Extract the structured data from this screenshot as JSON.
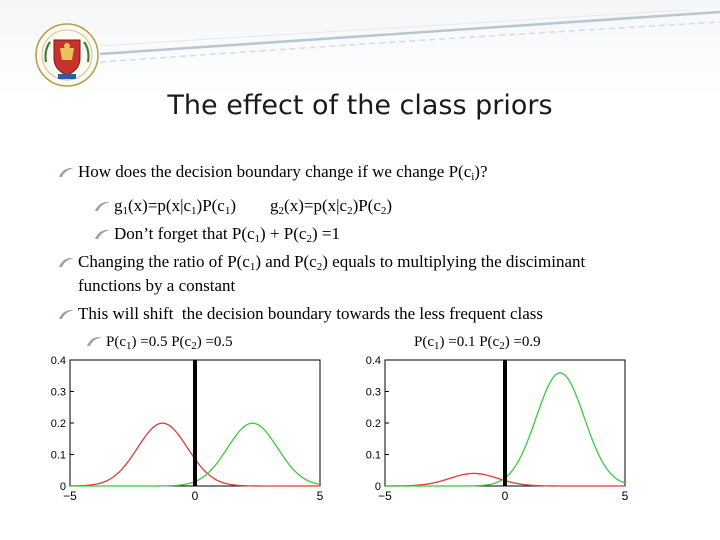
{
  "slide": {
    "title": "The effect of the class priors"
  },
  "bullets": [
    {
      "level": 1,
      "segments": [
        {
          "t": "How does the decision boundary change if we change P(c"
        },
        {
          "sub": "i"
        },
        {
          "t": ")?"
        }
      ]
    },
    {
      "level": 2,
      "segments": [
        {
          "t": "g"
        },
        {
          "sub": "1"
        },
        {
          "t": "(x)=p(x|c"
        },
        {
          "sub": "1"
        },
        {
          "t": ")P(c"
        },
        {
          "sub": "1"
        },
        {
          "t": ")        g"
        },
        {
          "sub": "2"
        },
        {
          "t": "(x)=p(x|c"
        },
        {
          "sub": "2"
        },
        {
          "t": ")P(c"
        },
        {
          "sub": "2"
        },
        {
          "t": ")"
        }
      ]
    },
    {
      "level": 2,
      "segments": [
        {
          "t": "Don’t forget that P(c"
        },
        {
          "sub": "1"
        },
        {
          "t": ") + P(c"
        },
        {
          "sub": "2"
        },
        {
          "t": ") =1"
        }
      ]
    },
    {
      "level": 1,
      "segments": [
        {
          "t": "Changing the ratio of P(c"
        },
        {
          "sub": "1"
        },
        {
          "t": ") and P(c"
        },
        {
          "sub": "2"
        },
        {
          "t": ") equals to multiplying the disciminant"
        }
      ]
    },
    {
      "level": 0,
      "segments": [
        {
          "t": "functions by a constant"
        }
      ]
    },
    {
      "level": 1,
      "segments": [
        {
          "t": "This will shift  the decision boundary towards the less frequent class"
        }
      ]
    }
  ],
  "captions": {
    "left_segments": [
      {
        "t": "P(c"
      },
      {
        "sub": "1"
      },
      {
        "t": ") =0.5 P(c"
      },
      {
        "sub": "2"
      },
      {
        "t": ") =0.5"
      }
    ],
    "right_segments": [
      {
        "t": "P(c"
      },
      {
        "sub": "1"
      },
      {
        "t": ") =0.1 P(c"
      },
      {
        "sub": "2"
      },
      {
        "t": ") =0.9"
      }
    ]
  },
  "chart_data": [
    {
      "type": "line",
      "xlim": [
        -5,
        5
      ],
      "ylim": [
        0,
        0.4
      ],
      "x_ticks": [
        "-5",
        "0",
        "5"
      ],
      "y_ticks": [
        "0",
        "0.1",
        "0.2",
        "0.3",
        "0.4"
      ],
      "decision_boundary_x": 0.0,
      "series": [
        {
          "color": "#e03a3a",
          "mean": -1.3,
          "sd": 1.0,
          "prior": 0.5
        },
        {
          "color": "#3ec83e",
          "mean": 2.3,
          "sd": 1.0,
          "prior": 0.5
        }
      ]
    },
    {
      "type": "line",
      "xlim": [
        -5,
        5
      ],
      "ylim": [
        0,
        0.4
      ],
      "x_ticks": [
        "-5",
        "0",
        "5"
      ],
      "y_ticks": [
        "0",
        "0.1",
        "0.2",
        "0.3",
        "0.4"
      ],
      "decision_boundary_x": 0.0,
      "series": [
        {
          "color": "#e03a3a",
          "mean": -1.3,
          "sd": 1.0,
          "prior": 0.1
        },
        {
          "color": "#3ec83e",
          "mean": 2.3,
          "sd": 1.0,
          "prior": 0.9
        }
      ]
    }
  ]
}
